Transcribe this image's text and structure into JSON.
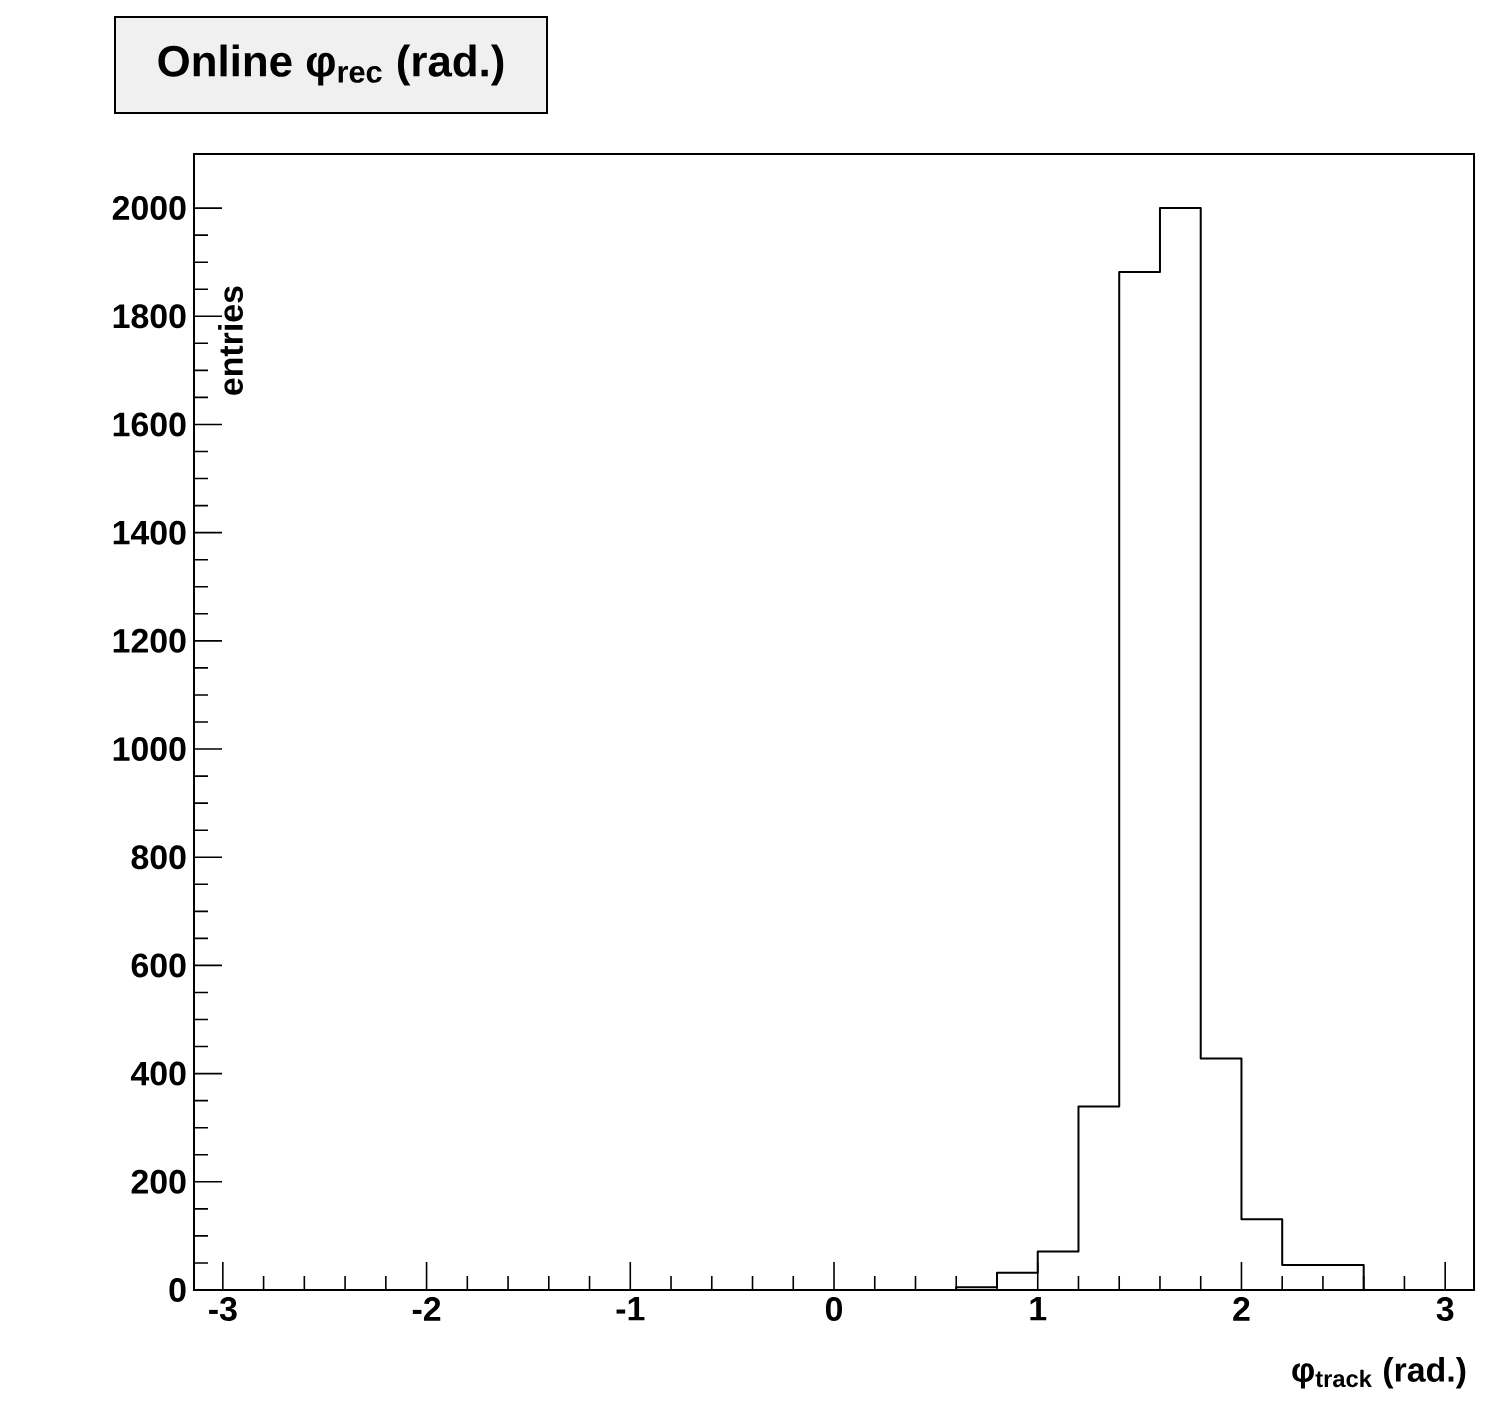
{
  "chart_data": {
    "type": "histogram",
    "title": "Online φ$_{rec}$ (rad.)",
    "xlabel": "φ$_{track}$ (rad.)",
    "ylabel": "entries",
    "bins": [
      0.6,
      0.8,
      1.0,
      1.2,
      1.4,
      1.6,
      1.8,
      2.0,
      2.2,
      2.4,
      2.6
    ],
    "values": [
      5,
      32,
      71,
      339,
      1882,
      2000,
      428,
      131,
      46,
      46
    ],
    "color": "#000000",
    "xlim": [
      -3.1416,
      3.1416
    ],
    "ylim": [
      0,
      2100
    ],
    "xticks": [
      -3,
      -2,
      -1,
      0,
      1,
      2,
      3
    ],
    "yticks": [
      0,
      200,
      400,
      600,
      800,
      1000,
      1200,
      1400,
      1600,
      1800,
      2000
    ],
    "grid": false
  }
}
